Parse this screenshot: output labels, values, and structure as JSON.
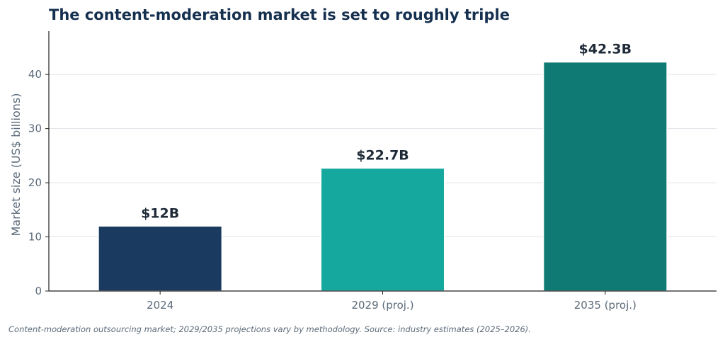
{
  "chart_data": {
    "type": "bar",
    "title": "The content-moderation market is set to roughly triple",
    "footnote": "Content-moderation outsourcing market; 2029/2035 projections vary by methodology. Source: industry estimates (2025–2026).",
    "xlabel": "",
    "ylabel": "Market size (US$ billions)",
    "categories": [
      "2024",
      "2029 (proj.)",
      "2035 (proj.)"
    ],
    "values": [
      12,
      22.7,
      42.3
    ],
    "value_labels": [
      "$12B",
      "$22.7B",
      "$42.3B"
    ],
    "bar_colors": [
      "#1b3a5f",
      "#14a89f",
      "#0e7a73"
    ],
    "ylim": [
      0,
      48
    ],
    "yticks": [
      0,
      10,
      20,
      30,
      40
    ],
    "ytick_labels": [
      "0",
      "10",
      "20",
      "30",
      "40"
    ],
    "grid": "horizontal",
    "legend": "none"
  },
  "colors": {
    "title": "#15304f",
    "value_label": "#1e2a38",
    "tick_label": "#5c6b7a",
    "axis_title": "#5c6b7a",
    "axis_line": "#222222",
    "grid": "#dfe3e8",
    "footnote": "#5c6b7a"
  }
}
